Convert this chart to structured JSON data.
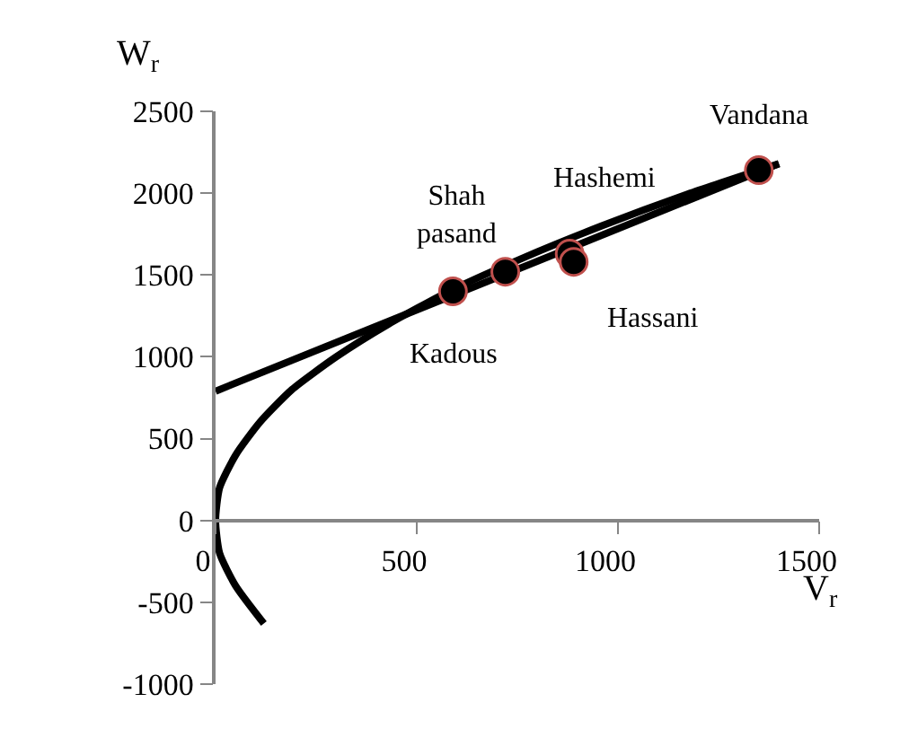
{
  "chart_data": {
    "type": "scatter",
    "xlabel": "V$_{r}$",
    "ylabel": "W$_{r}$",
    "xlim": [
      0,
      1500
    ],
    "xticks": [
      0,
      500,
      1000,
      1500
    ],
    "ylim": [
      -1000,
      2500
    ],
    "yticks": [
      -1000,
      -500,
      0,
      500,
      1000,
      1500,
      2000,
      2500
    ],
    "series": [
      {
        "type": "line",
        "marker": "none",
        "color": "#000000",
        "x": [
          0,
          1400
        ],
        "values": [
          790,
          2180
        ]
      },
      {
        "type": "line",
        "marker": "none",
        "color": "#000000",
        "x": [
          120,
          50,
          10,
          0,
          10,
          50,
          110,
          190,
          300,
          430,
          580,
          760,
          960,
          1180,
          1400
        ],
        "values": [
          -630,
          -400,
          -200,
          0,
          200,
          400,
          600,
          800,
          1000,
          1200,
          1400,
          1600,
          1800,
          2000,
          2180
        ]
      },
      {
        "marker": "circle",
        "color": "#000000",
        "x": [
          590,
          720,
          880,
          890,
          1350
        ],
        "values": [
          1400,
          1520,
          1630,
          1580,
          2140
        ]
      }
    ],
    "annotations": [
      {
        "text": "Kadous",
        "x": 590,
        "y": 1400
      },
      {
        "text": "Shah\npasand",
        "x": 720,
        "y": 1520
      },
      {
        "text": "Hashemi",
        "x": 880,
        "y": 1630
      },
      {
        "text": "Hassani",
        "x": 890,
        "y": 1580
      },
      {
        "text": "Vandana",
        "x": 1350,
        "y": 2140
      }
    ]
  }
}
